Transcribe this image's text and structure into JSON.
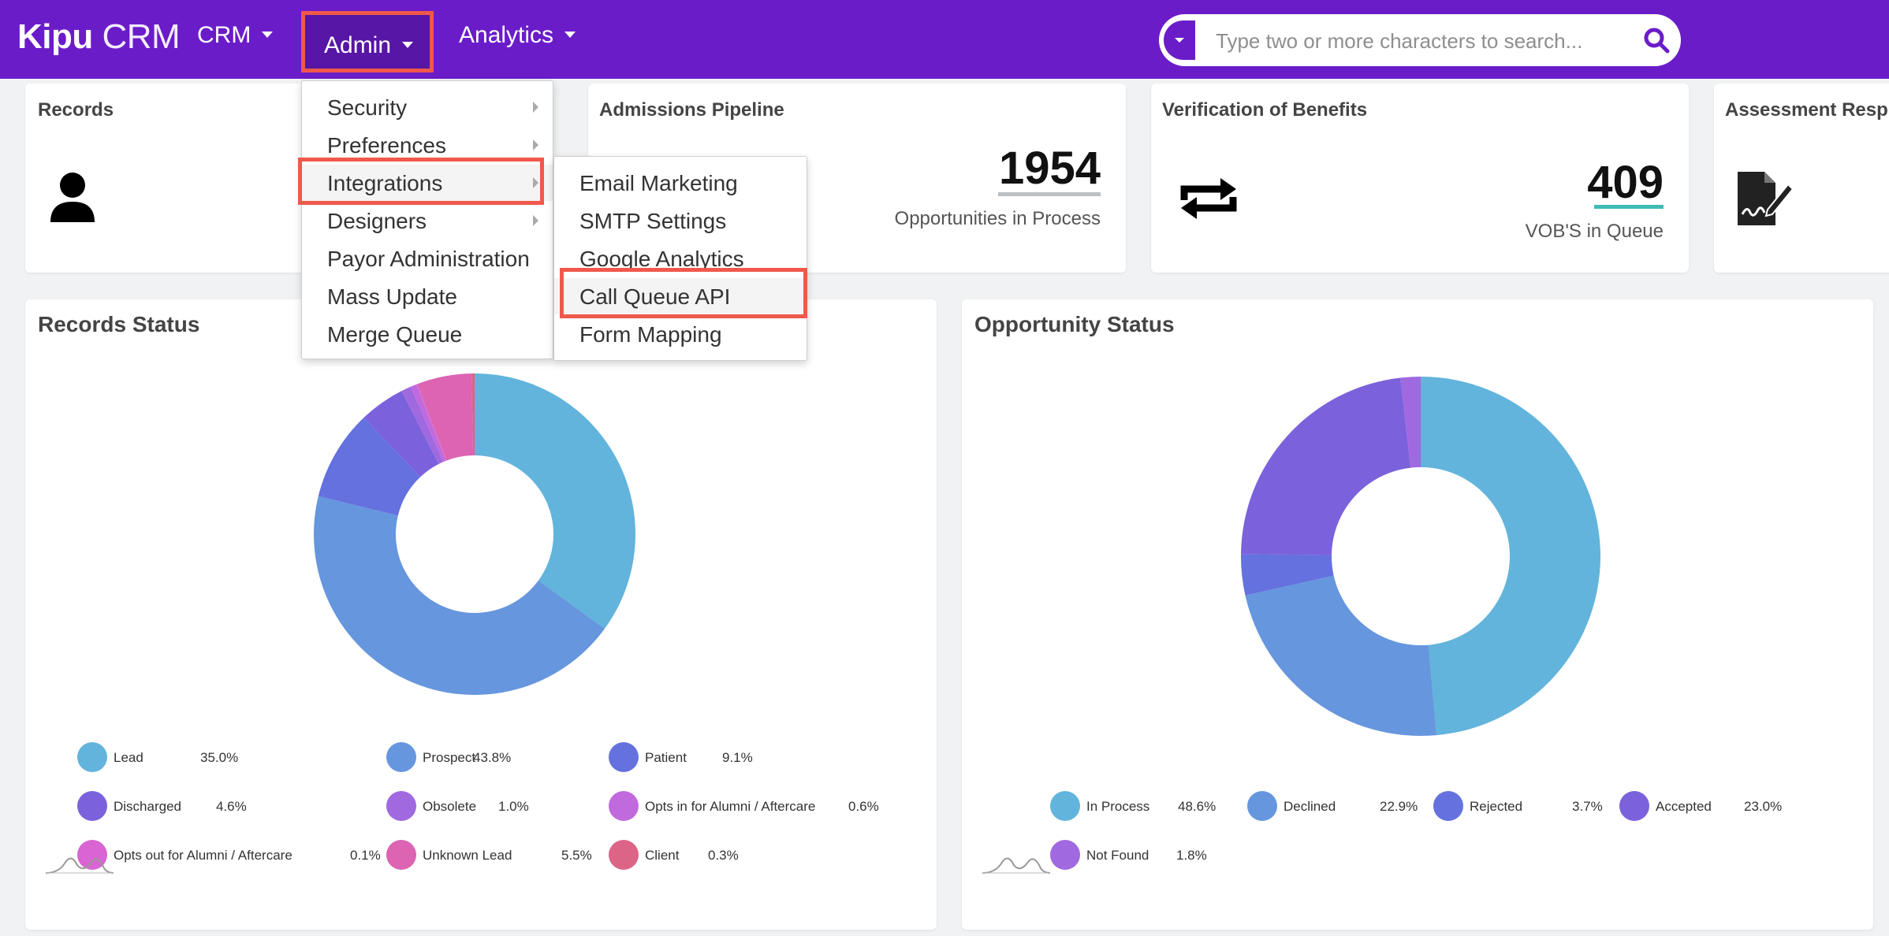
{
  "navbar": {
    "brand_bold": "Kipu",
    "brand_light": " CRM",
    "menu": [
      {
        "label": "CRM"
      },
      {
        "label": "Admin"
      },
      {
        "label": "Analytics"
      }
    ],
    "search_placeholder": "Type two or more characters to search..."
  },
  "cards": {
    "records": {
      "title": "Records"
    },
    "pipeline": {
      "title": "Admissions Pipeline",
      "value": "1954",
      "label": "Opportunities in Process"
    },
    "vob": {
      "title": "Verification of Benefits",
      "value": "409",
      "label": "VOB'S in Queue"
    },
    "assessment": {
      "title": "Assessment Resp"
    }
  },
  "admin_menu": [
    {
      "label": "Security",
      "has_submenu": true
    },
    {
      "label": "Preferences",
      "has_submenu": true
    },
    {
      "label": "Integrations",
      "has_submenu": true
    },
    {
      "label": "Designers",
      "has_submenu": true
    },
    {
      "label": "Payor Administration",
      "has_submenu": false
    },
    {
      "label": "Mass Update",
      "has_submenu": false
    },
    {
      "label": "Merge Queue",
      "has_submenu": false
    }
  ],
  "integrations_menu": [
    {
      "label": "Email Marketing"
    },
    {
      "label": "SMTP Settings"
    },
    {
      "label": "Google Analytics"
    },
    {
      "label": "Call Queue API"
    },
    {
      "label": "Form Mapping"
    }
  ],
  "records_status": {
    "title": "Records Status",
    "segments": [
      {
        "name": "Lead",
        "pct": "35.0%",
        "value": 35.0,
        "color": "#62b4dc"
      },
      {
        "name": "Prospect",
        "pct": "43.8%",
        "value": 43.8,
        "color": "#6696de"
      },
      {
        "name": "Patient",
        "pct": "9.1%",
        "value": 9.1,
        "color": "#6471de"
      },
      {
        "name": "Discharged",
        "pct": "4.6%",
        "value": 4.6,
        "color": "#7c61dc"
      },
      {
        "name": "Obsolete",
        "pct": "1.0%",
        "value": 1.0,
        "color": "#a069e0"
      },
      {
        "name": "Opts in for Alumni / Aftercare",
        "pct": "0.6%",
        "value": 0.6,
        "color": "#c06ade"
      },
      {
        "name": "Opts out for Alumni / Aftercare",
        "pct": "0.1%",
        "value": 0.1,
        "color": "#d964d3"
      },
      {
        "name": "Unknown Lead",
        "pct": "5.5%",
        "value": 5.5,
        "color": "#dc64b2"
      },
      {
        "name": "Client",
        "pct": "0.3%",
        "value": 0.3,
        "color": "#dc6487"
      }
    ]
  },
  "opportunity_status": {
    "title": "Opportunity Status",
    "segments": [
      {
        "name": "In Process",
        "pct": "48.6%",
        "value": 48.6,
        "color": "#62b4dc"
      },
      {
        "name": "Declined",
        "pct": "22.9%",
        "value": 22.9,
        "color": "#6696de"
      },
      {
        "name": "Rejected",
        "pct": "3.7%",
        "value": 3.7,
        "color": "#6471de"
      },
      {
        "name": "Accepted",
        "pct": "23.0%",
        "value": 23.0,
        "color": "#7c61dc"
      },
      {
        "name": "Not Found",
        "pct": "1.8%",
        "value": 1.8,
        "color": "#a069e0"
      }
    ]
  },
  "chart_data": [
    {
      "type": "pie",
      "title": "Records Status",
      "categories": [
        "Lead",
        "Prospect",
        "Patient",
        "Discharged",
        "Obsolete",
        "Opts in for Alumni / Aftercare",
        "Opts out for Alumni / Aftercare",
        "Unknown Lead",
        "Client"
      ],
      "values": [
        35.0,
        43.8,
        9.1,
        4.6,
        1.0,
        0.6,
        0.1,
        5.5,
        0.3
      ],
      "legend": "bottom"
    },
    {
      "type": "pie",
      "title": "Opportunity Status",
      "categories": [
        "In Process",
        "Declined",
        "Rejected",
        "Accepted",
        "Not Found"
      ],
      "values": [
        48.6,
        22.9,
        3.7,
        23.0,
        1.8
      ],
      "legend": "bottom"
    }
  ]
}
